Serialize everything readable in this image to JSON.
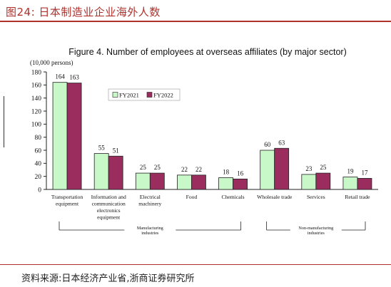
{
  "header": {
    "label": "图24:  日本制造业企业海外人数"
  },
  "source": {
    "text": "资料来源:日本经济产业省,浙商证券研究所"
  },
  "chart_data": {
    "type": "bar",
    "title": "Figure 4. Number of employees at overseas affiliates (by major sector)",
    "unit_label": "(10,000 persons)",
    "ylim": [
      0,
      180
    ],
    "yticks": [
      0,
      20,
      40,
      60,
      80,
      100,
      120,
      140,
      160,
      180
    ],
    "grid": false,
    "legend_position": "top-center",
    "categories": [
      [
        "Transportation",
        "equipment"
      ],
      [
        "Information and",
        "communication",
        "electronics",
        "equipment"
      ],
      [
        "Electrical",
        "machinery"
      ],
      [
        "Food"
      ],
      [
        "Chemicals"
      ],
      [
        "Wholesale trade"
      ],
      [
        "Services"
      ],
      [
        "Retail trade"
      ]
    ],
    "series": [
      {
        "name": "FY2021",
        "color": "#c8f7c8",
        "values": [
          164,
          55,
          25,
          22,
          18,
          60,
          23,
          19
        ]
      },
      {
        "name": "FY2022",
        "color": "#9b2d5e",
        "values": [
          163,
          51,
          25,
          22,
          16,
          63,
          25,
          17
        ]
      }
    ],
    "groups": [
      {
        "label": [
          "Manufacturing",
          "industries"
        ],
        "from": 0,
        "to": 4
      },
      {
        "label": [
          "Non-manufacturing",
          "industries"
        ],
        "from": 5,
        "to": 7
      }
    ]
  }
}
